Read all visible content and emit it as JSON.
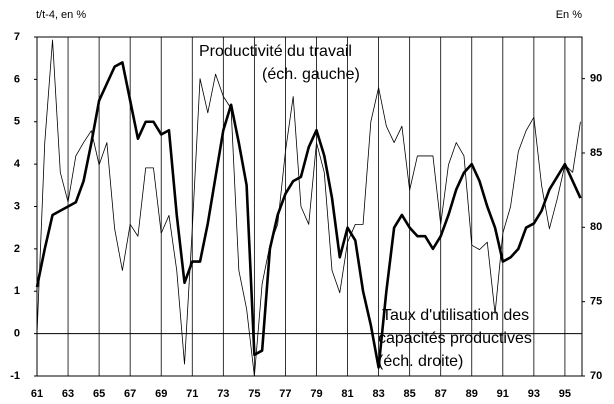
{
  "chart_data": {
    "type": "line",
    "y_label": "t/t-4, en %",
    "y2_label": "En %",
    "annotations": [
      {
        "lines": [
          "Productivité du travail",
          "(éch. gauche)"
        ]
      },
      {
        "lines": [
          "Taux d'utilisation des",
          "capacités productives",
          "(éch. droite)"
        ]
      }
    ],
    "x": [
      61,
      61.5,
      62,
      62.5,
      63,
      63.5,
      64,
      64.5,
      65,
      65.5,
      66,
      66.5,
      67,
      67.5,
      68,
      68.5,
      69,
      69.5,
      70,
      70.5,
      71,
      71.5,
      72,
      72.5,
      73,
      73.5,
      74,
      74.5,
      75,
      75.5,
      76,
      76.5,
      77,
      77.5,
      78,
      78.5,
      79,
      79.5,
      80,
      80.5,
      81,
      81.5,
      82,
      82.5,
      83,
      83.5,
      84,
      84.5,
      85,
      85.5,
      86,
      86.5,
      87,
      87.5,
      88,
      88.5,
      89,
      89.5,
      90,
      90.5,
      91,
      91.5,
      92,
      92.5,
      93,
      93.5,
      94,
      94.5,
      95,
      95.5,
      96
    ],
    "series": [
      {
        "color": "#000000",
        "width": 2.6,
        "axis": "y",
        "values": [
          1.1,
          2.0,
          2.8,
          2.9,
          3.0,
          3.1,
          3.6,
          4.5,
          5.5,
          5.9,
          6.3,
          6.4,
          5.5,
          4.6,
          5.0,
          5.0,
          4.7,
          4.8,
          2.8,
          1.2,
          1.7,
          1.7,
          2.6,
          3.7,
          4.8,
          5.4,
          4.5,
          3.5,
          -0.5,
          -0.4,
          2.0,
          2.8,
          3.3,
          3.6,
          3.7,
          4.4,
          4.8,
          4.2,
          3.2,
          1.8,
          2.5,
          2.2,
          1.0,
          0.2,
          -0.8,
          1.0,
          2.5,
          2.8,
          2.5,
          2.3,
          2.3,
          2.0,
          2.3,
          2.8,
          3.4,
          3.8,
          4.0,
          3.6,
          3.0,
          2.5,
          1.7,
          1.8,
          2.0,
          2.5,
          2.6,
          2.9,
          3.4,
          3.7,
          4.0,
          3.6,
          3.2
        ]
      },
      {
        "color": "#000000",
        "width": 0.8,
        "axis": "y2",
        "values": [
          72.8,
          85.7,
          92.6,
          83.7,
          81.7,
          84.8,
          85.7,
          86.5,
          84.2,
          85.7,
          79.9,
          77.1,
          80.2,
          79.4,
          84.0,
          84.0,
          79.6,
          80.8,
          77.1,
          70.8,
          79.9,
          90.0,
          87.7,
          90.3,
          88.8,
          88.0,
          77.1,
          74.5,
          70.0,
          76.2,
          78.8,
          80.2,
          85.1,
          88.8,
          81.4,
          80.2,
          85.7,
          83.7,
          77.1,
          75.6,
          79.0,
          80.2,
          80.2,
          87.1,
          89.4,
          86.8,
          85.7,
          86.8,
          82.5,
          84.8,
          84.8,
          84.8,
          80.2,
          84.2,
          85.7,
          84.8,
          78.8,
          78.5,
          79.0,
          74.2,
          79.6,
          81.4,
          85.1,
          86.5,
          87.4,
          82.8,
          79.9,
          81.9,
          84.2,
          83.7,
          87.1
        ]
      }
    ],
    "xlim": [
      61,
      96.1
    ],
    "xticks": [
      61,
      63,
      65,
      67,
      69,
      71,
      73,
      75,
      77,
      79,
      81,
      83,
      85,
      87,
      89,
      91,
      93,
      95
    ],
    "ylim": [
      -1,
      7
    ],
    "yticks": [
      -1,
      0,
      1,
      2,
      3,
      4,
      5,
      6,
      7
    ],
    "y2lim": [
      70,
      92.8
    ],
    "y2ticks": [
      70,
      75,
      80,
      85,
      90
    ],
    "grid_x": true,
    "grid_color": "#000000"
  }
}
